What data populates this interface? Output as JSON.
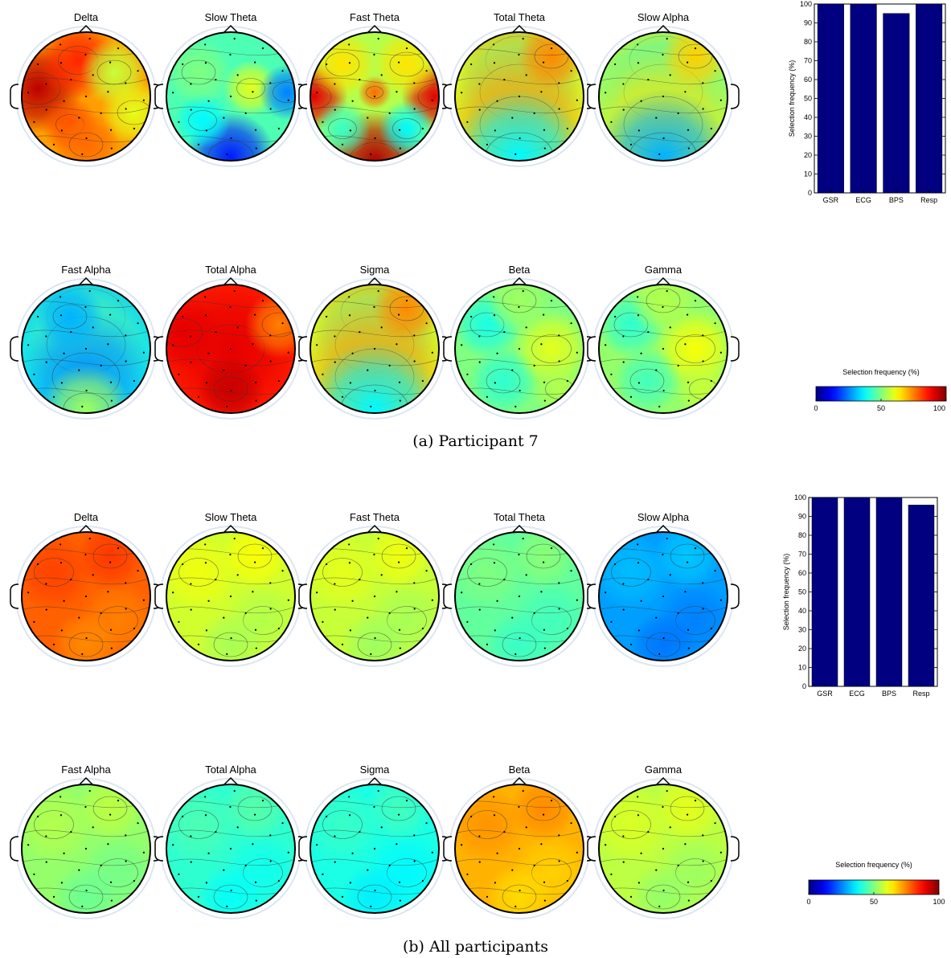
{
  "figure": {
    "panels": [
      {
        "id": "a",
        "caption": "(a) Participant 7",
        "topomaps": [
          {
            "title": "Delta",
            "base": 72,
            "pattern": "front-left-warm"
          },
          {
            "title": "Slow Theta",
            "base": 45,
            "pattern": "cool-bottom"
          },
          {
            "title": "Fast Theta",
            "base": 55,
            "pattern": "edges-warm"
          },
          {
            "title": "Total Theta",
            "base": 62,
            "pattern": "bands"
          },
          {
            "title": "Slow Alpha",
            "base": 55,
            "pattern": "bands"
          },
          {
            "title": "Fast Alpha",
            "base": 35,
            "pattern": "bands-cool"
          },
          {
            "title": "Total Alpha",
            "base": 85,
            "pattern": "uniform-hot"
          },
          {
            "title": "Sigma",
            "base": 62,
            "pattern": "bands"
          },
          {
            "title": "Beta",
            "base": 50,
            "pattern": "mixed"
          },
          {
            "title": "Gamma",
            "base": 52,
            "pattern": "mixed"
          }
        ]
      },
      {
        "id": "b",
        "caption": "(b) All participants",
        "topomaps": [
          {
            "title": "Delta",
            "base": 78,
            "pattern": "uniform"
          },
          {
            "title": "Slow Theta",
            "base": 58,
            "pattern": "uniform"
          },
          {
            "title": "Fast Theta",
            "base": 57,
            "pattern": "uniform"
          },
          {
            "title": "Total Theta",
            "base": 47,
            "pattern": "uniform"
          },
          {
            "title": "Slow Alpha",
            "base": 28,
            "pattern": "uniform"
          },
          {
            "title": "Fast Alpha",
            "base": 52,
            "pattern": "uniform"
          },
          {
            "title": "Total Alpha",
            "base": 42,
            "pattern": "uniform"
          },
          {
            "title": "Sigma",
            "base": 40,
            "pattern": "uniform"
          },
          {
            "title": "Beta",
            "base": 70,
            "pattern": "uniform"
          },
          {
            "title": "Gamma",
            "base": 56,
            "pattern": "uniform"
          }
        ]
      }
    ],
    "colorbar": {
      "label": "Selection frequency (%)",
      "ticks": [
        "0",
        "50",
        "100"
      ],
      "colormap": "jet"
    }
  },
  "chart_data": [
    {
      "type": "bar",
      "panel": "a",
      "categories": [
        "GSR",
        "ECG",
        "BPS",
        "Resp"
      ],
      "values": [
        100,
        100,
        95,
        100
      ],
      "ylabel": "Selection frequency (%)",
      "ylim": [
        0,
        100
      ],
      "yticks": [
        "0",
        "10",
        "20",
        "30",
        "40",
        "50",
        "60",
        "70",
        "80",
        "90",
        "100"
      ],
      "bar_color": "#000080"
    },
    {
      "type": "bar",
      "panel": "b",
      "categories": [
        "GSR",
        "ECG",
        "BPS",
        "Resp"
      ],
      "values": [
        100,
        100,
        100,
        96
      ],
      "ylabel": "Selection frequency (%)",
      "ylim": [
        0,
        100
      ],
      "yticks": [
        "0",
        "10",
        "20",
        "30",
        "40",
        "50",
        "60",
        "70",
        "80",
        "90",
        "100"
      ],
      "bar_color": "#000080"
    }
  ]
}
